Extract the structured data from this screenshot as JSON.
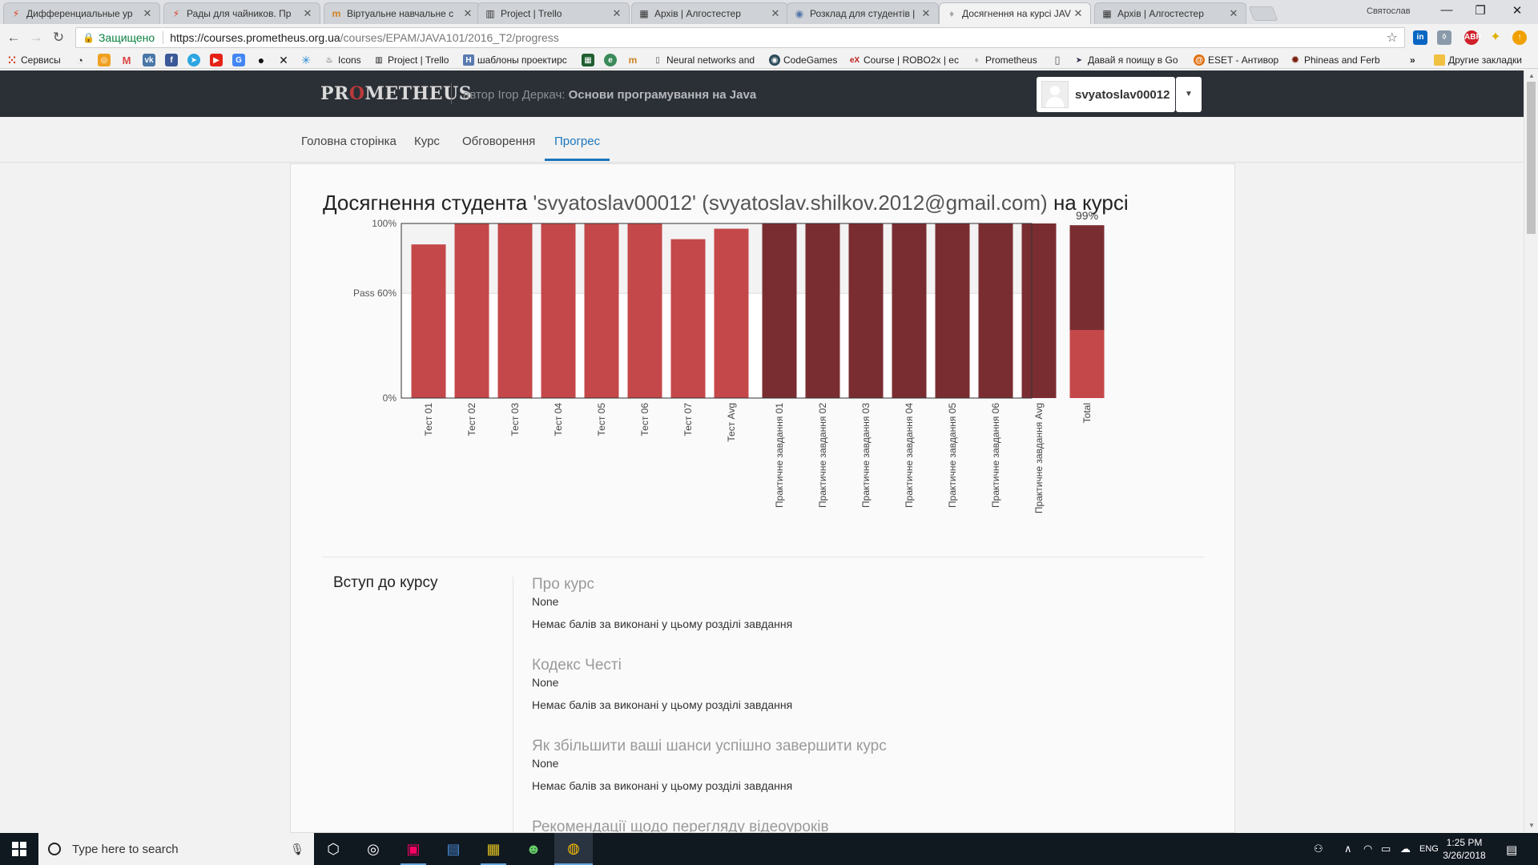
{
  "browser": {
    "tabs": [
      {
        "title": "Дифференциальные ур",
        "icon_char": "⚡",
        "icon_color": "#e04020",
        "active": false
      },
      {
        "title": "Рады для чайников. Пр",
        "icon_char": "⚡",
        "icon_color": "#e04020",
        "active": false
      },
      {
        "title": "Віртуальне навчальне с",
        "icon_char": "m",
        "icon_color": "#d08020",
        "active": false
      },
      {
        "title": "Project | Trello",
        "icon_char": "▥",
        "icon_color": "#333333",
        "active": false
      },
      {
        "title": "Архів | Алгостестер",
        "icon_char": "▦",
        "icon_color": "#333333",
        "active": false
      },
      {
        "title": "Розклад для студентів |",
        "icon_char": "◉",
        "icon_color": "#5577aa",
        "active": false
      },
      {
        "title": "Досягнення на курсі JAV",
        "icon_char": "💡",
        "icon_color": "#aaaaaa",
        "active": true
      },
      {
        "title": "Архів | Алгостестер",
        "icon_char": "▦",
        "icon_color": "#333333",
        "active": false
      }
    ],
    "profile_name": "Святослав",
    "address": {
      "secure_label": "Защищено",
      "url_host": "https://courses.prometheus.org.ua",
      "url_path": "/courses/EPAM/JAVA101/2016_T2/progress"
    },
    "bookmarks": {
      "apps_label": "Сервисы",
      "items": [
        {
          "label": "Icons"
        },
        {
          "label": "Project | Trello"
        },
        {
          "label": "шаблоны проектирс"
        },
        {
          "label": "Neural networks and"
        },
        {
          "label": "CodeGames"
        },
        {
          "label": "Course | ROBO2x | ec"
        },
        {
          "label": "Prometheus"
        },
        {
          "label": "Давай я поищу в Go"
        },
        {
          "label": "ESET - Антивор"
        },
        {
          "label": "Phineas and Ferb"
        }
      ],
      "more_label": "»",
      "other_label": "Другие закладки"
    }
  },
  "site": {
    "logo_pre": "PR",
    "logo_o": "O",
    "logo_post": "METHEUS",
    "author_label": "автор Ігор Деркач:",
    "course_title": "Основи програмування на Java",
    "username": "svyatoslav00012"
  },
  "nav": {
    "tabs": [
      {
        "label": "Головна сторінка"
      },
      {
        "label": "Курс"
      },
      {
        "label": "Обговорення"
      },
      {
        "label": "Прогрес"
      }
    ]
  },
  "progress": {
    "title_pre": "Досягнення студента",
    "title_mid": "'svyatoslav00012' (svyatoslav.shilkov.2012@gmail.com)",
    "title_post": "на курсі"
  },
  "chart_data": {
    "type": "bar",
    "y_tick_labels": [
      "100%",
      "Pass 60%",
      "0%"
    ],
    "y_tick_values": [
      100,
      60,
      0
    ],
    "ylim": [
      0,
      100
    ],
    "pass_threshold": 60,
    "categories": [
      "Тест 01",
      "Тест 02",
      "Тест 03",
      "Тест 04",
      "Тест 05",
      "Тест 06",
      "Тест 07",
      "Тест Avg",
      "Практичне завдання 01",
      "Практичне завдання 02",
      "Практичне завдання 03",
      "Практичне завдання 04",
      "Практичне завдання 05",
      "Практичне завдання 06",
      "Практичне завдання Avg",
      "Total"
    ],
    "values": [
      88,
      100,
      100,
      100,
      100,
      100,
      91,
      97,
      100,
      100,
      100,
      100,
      100,
      100,
      100,
      99
    ],
    "bar_groups": [
      "test",
      "test",
      "test",
      "test",
      "test",
      "test",
      "test",
      "test",
      "practical",
      "practical",
      "practical",
      "practical",
      "practical",
      "practical",
      "practical",
      "total"
    ],
    "total_tests_part": 39,
    "total_label": "99%",
    "colors": {
      "test": "#c4484a",
      "practical": "#7a2d31",
      "band": "#f3f3f3"
    }
  },
  "sections": [
    {
      "title": "Вступ до курсу",
      "subsections": [
        {
          "title": "Про курс",
          "value": "None",
          "note": "Немає балів за виконані у цьому розділі завдання"
        },
        {
          "title": "Кодекс Честі",
          "value": "None",
          "note": "Немає балів за виконані у цьому розділі завдання"
        },
        {
          "title": "Як збільшити ваші шанси успішно завершити курс",
          "value": "None",
          "note": "Немає балів за виконані у цьому розділі завдання"
        },
        {
          "title": "Рекомендації щодо перегляду відеоуроків",
          "value": "",
          "note": ""
        }
      ]
    }
  ],
  "taskbar": {
    "search_placeholder": "Type here to search",
    "lang": "ENG",
    "time": "1:25 PM",
    "date": "3/26/2018"
  }
}
